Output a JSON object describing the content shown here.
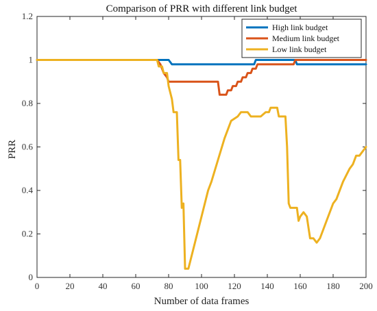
{
  "chart_data": {
    "type": "line",
    "title": "Comparison of PRR with different link budget",
    "xlabel": "Number of data frames",
    "ylabel": "PRR",
    "xlim": [
      0,
      200
    ],
    "ylim": [
      0,
      1.2
    ],
    "xticks": [
      0,
      20,
      40,
      60,
      80,
      100,
      120,
      140,
      160,
      180,
      200
    ],
    "yticks": [
      0,
      0.2,
      0.4,
      0.6,
      0.8,
      1,
      1.2
    ],
    "grid": false,
    "legend_position": "top-right",
    "series": [
      {
        "name": "High link budget",
        "color": "#0072BD",
        "points": [
          [
            0,
            1
          ],
          [
            73,
            1
          ],
          [
            80,
            1
          ],
          [
            82,
            0.98
          ],
          [
            100,
            0.98
          ],
          [
            120,
            0.98
          ],
          [
            132,
            0.98
          ],
          [
            133,
            1
          ],
          [
            157,
            1
          ],
          [
            158,
            0.98
          ],
          [
            200,
            0.98
          ]
        ]
      },
      {
        "name": "Medium link budget",
        "color": "#D95319",
        "points": [
          [
            0,
            1
          ],
          [
            73,
            1
          ],
          [
            75,
            0.98
          ],
          [
            77,
            0.94
          ],
          [
            79,
            0.92
          ],
          [
            80,
            0.9
          ],
          [
            110,
            0.9
          ],
          [
            111,
            0.84
          ],
          [
            115,
            0.84
          ],
          [
            116,
            0.86
          ],
          [
            118,
            0.86
          ],
          [
            119,
            0.88
          ],
          [
            121,
            0.88
          ],
          [
            122,
            0.9
          ],
          [
            124,
            0.9
          ],
          [
            125,
            0.92
          ],
          [
            127,
            0.92
          ],
          [
            128,
            0.94
          ],
          [
            130,
            0.94
          ],
          [
            131,
            0.96
          ],
          [
            133,
            0.96
          ],
          [
            134,
            0.98
          ],
          [
            156,
            0.98
          ],
          [
            157,
            1
          ],
          [
            200,
            1
          ]
        ]
      },
      {
        "name": "Low link budget",
        "color": "#EDB120",
        "points": [
          [
            0,
            1
          ],
          [
            73,
            1
          ],
          [
            74,
            0.97
          ],
          [
            76,
            0.97
          ],
          [
            77,
            0.94
          ],
          [
            79,
            0.94
          ],
          [
            80,
            0.88
          ],
          [
            82,
            0.82
          ],
          [
            83,
            0.76
          ],
          [
            85,
            0.76
          ],
          [
            86,
            0.54
          ],
          [
            87,
            0.54
          ],
          [
            88,
            0.32
          ],
          [
            89,
            0.34
          ],
          [
            90,
            0.04
          ],
          [
            92,
            0.04
          ],
          [
            96,
            0.16
          ],
          [
            100,
            0.28
          ],
          [
            104,
            0.4
          ],
          [
            106,
            0.44
          ],
          [
            110,
            0.54
          ],
          [
            114,
            0.64
          ],
          [
            118,
            0.72
          ],
          [
            122,
            0.74
          ],
          [
            124,
            0.76
          ],
          [
            128,
            0.76
          ],
          [
            130,
            0.74
          ],
          [
            136,
            0.74
          ],
          [
            139,
            0.76
          ],
          [
            141,
            0.76
          ],
          [
            142,
            0.78
          ],
          [
            146,
            0.78
          ],
          [
            147,
            0.74
          ],
          [
            151,
            0.74
          ],
          [
            152,
            0.6
          ],
          [
            153,
            0.34
          ],
          [
            154,
            0.32
          ],
          [
            156,
            0.32
          ],
          [
            158,
            0.32
          ],
          [
            159,
            0.26
          ],
          [
            160,
            0.28
          ],
          [
            162,
            0.3
          ],
          [
            164,
            0.28
          ],
          [
            166,
            0.18
          ],
          [
            168,
            0.18
          ],
          [
            170,
            0.16
          ],
          [
            172,
            0.18
          ],
          [
            176,
            0.26
          ],
          [
            180,
            0.34
          ],
          [
            182,
            0.36
          ],
          [
            186,
            0.44
          ],
          [
            190,
            0.5
          ],
          [
            192,
            0.52
          ],
          [
            194,
            0.56
          ],
          [
            196,
            0.56
          ],
          [
            198,
            0.58
          ],
          [
            200,
            0.6
          ]
        ]
      }
    ]
  }
}
